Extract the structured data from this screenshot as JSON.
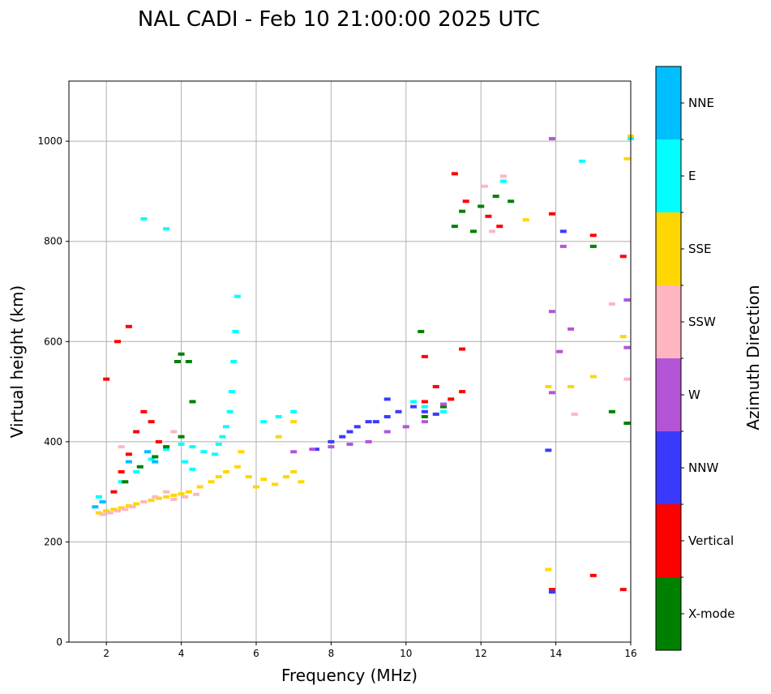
{
  "chart_data": {
    "type": "scatter",
    "title": "NAL CADI - Feb 10 21:00:00 2025 UTC",
    "xlabel": "Frequency (MHz)",
    "ylabel": "Virtual height (km)",
    "xlim": [
      1,
      16
    ],
    "ylim": [
      0,
      1120
    ],
    "xticks": [
      2,
      4,
      6,
      8,
      10,
      12,
      14,
      16
    ],
    "yticks": [
      0,
      200,
      400,
      600,
      800,
      1000
    ],
    "grid": true,
    "colorbar": {
      "label": "Azimuth Direction",
      "categories": [
        {
          "label": "X-mode",
          "color": "#008000"
        },
        {
          "label": "Vertical",
          "color": "#ff0000"
        },
        {
          "label": "NNW",
          "color": "#3a3aff"
        },
        {
          "label": "W",
          "color": "#b455d8"
        },
        {
          "label": "SSW",
          "color": "#ffb6c1"
        },
        {
          "label": "SSE",
          "color": "#ffd700"
        },
        {
          "label": "E",
          "color": "#00ffff"
        },
        {
          "label": "NNE",
          "color": "#00bfff"
        }
      ]
    },
    "series": [
      {
        "name": "SSE",
        "points": [
          [
            1.8,
            258
          ],
          [
            2.0,
            262
          ],
          [
            2.2,
            265
          ],
          [
            2.4,
            268
          ],
          [
            2.6,
            272
          ],
          [
            2.8,
            276
          ],
          [
            3.0,
            280
          ],
          [
            3.2,
            283
          ],
          [
            3.4,
            287
          ],
          [
            3.6,
            290
          ],
          [
            3.8,
            293
          ],
          [
            4.0,
            296
          ],
          [
            4.2,
            300
          ],
          [
            4.5,
            310
          ],
          [
            4.8,
            320
          ],
          [
            5.0,
            330
          ],
          [
            5.2,
            340
          ],
          [
            5.5,
            350
          ],
          [
            5.8,
            330
          ],
          [
            6.0,
            310
          ],
          [
            6.2,
            325
          ],
          [
            6.5,
            315
          ],
          [
            6.8,
            330
          ],
          [
            7.0,
            340
          ],
          [
            7.2,
            320
          ],
          [
            5.6,
            380
          ],
          [
            6.6,
            410
          ],
          [
            7.0,
            440
          ],
          [
            15.0,
            530
          ],
          [
            15.8,
            610
          ],
          [
            16.0,
            1010
          ],
          [
            15.9,
            965
          ],
          [
            13.2,
            843
          ],
          [
            13.8,
            510
          ],
          [
            14.4,
            510
          ],
          [
            13.8,
            145
          ]
        ]
      },
      {
        "name": "SSW",
        "points": [
          [
            1.9,
            255
          ],
          [
            2.1,
            258
          ],
          [
            2.3,
            262
          ],
          [
            2.5,
            265
          ],
          [
            2.7,
            270
          ],
          [
            3.0,
            280
          ],
          [
            3.3,
            290
          ],
          [
            3.6,
            300
          ],
          [
            3.8,
            285
          ],
          [
            4.1,
            290
          ],
          [
            4.4,
            295
          ],
          [
            2.4,
            390
          ],
          [
            3.8,
            420
          ],
          [
            12.1,
            910
          ],
          [
            12.3,
            820
          ],
          [
            12.6,
            930
          ],
          [
            15.5,
            675
          ],
          [
            15.9,
            525
          ],
          [
            14.5,
            455
          ]
        ]
      },
      {
        "name": "E",
        "points": [
          [
            1.8,
            290
          ],
          [
            2.4,
            320
          ],
          [
            2.8,
            340
          ],
          [
            3.2,
            365
          ],
          [
            3.6,
            385
          ],
          [
            4.0,
            395
          ],
          [
            4.3,
            390
          ],
          [
            4.6,
            380
          ],
          [
            4.9,
            375
          ],
          [
            5.0,
            395
          ],
          [
            5.1,
            410
          ],
          [
            5.2,
            430
          ],
          [
            5.3,
            460
          ],
          [
            5.35,
            500
          ],
          [
            5.4,
            560
          ],
          [
            5.45,
            620
          ],
          [
            5.5,
            690
          ],
          [
            4.1,
            360
          ],
          [
            4.3,
            345
          ],
          [
            6.2,
            440
          ],
          [
            6.6,
            450
          ],
          [
            7.0,
            460
          ],
          [
            10.2,
            480
          ],
          [
            10.5,
            470
          ],
          [
            11.0,
            460
          ],
          [
            3.0,
            845
          ],
          [
            3.6,
            825
          ],
          [
            14.7,
            960
          ],
          [
            12.6,
            920
          ],
          [
            16.0,
            1005
          ]
        ]
      },
      {
        "name": "Vertical",
        "points": [
          [
            2.2,
            300
          ],
          [
            2.4,
            340
          ],
          [
            2.6,
            375
          ],
          [
            2.8,
            420
          ],
          [
            3.0,
            460
          ],
          [
            3.2,
            440
          ],
          [
            3.4,
            400
          ],
          [
            2.3,
            600
          ],
          [
            2.6,
            630
          ],
          [
            2.0,
            525
          ],
          [
            10.5,
            480
          ],
          [
            10.8,
            510
          ],
          [
            11.2,
            485
          ],
          [
            11.5,
            500
          ],
          [
            10.5,
            570
          ],
          [
            11.5,
            585
          ],
          [
            11.3,
            935
          ],
          [
            11.6,
            880
          ],
          [
            12.2,
            850
          ],
          [
            12.5,
            830
          ],
          [
            13.9,
            855
          ],
          [
            15.0,
            812
          ],
          [
            15.8,
            770
          ],
          [
            15.0,
            133
          ],
          [
            15.8,
            105
          ],
          [
            13.9,
            105
          ]
        ]
      },
      {
        "name": "X-mode",
        "points": [
          [
            2.5,
            320
          ],
          [
            2.9,
            350
          ],
          [
            3.3,
            370
          ],
          [
            3.6,
            390
          ],
          [
            4.0,
            410
          ],
          [
            3.9,
            560
          ],
          [
            4.0,
            575
          ],
          [
            4.2,
            560
          ],
          [
            4.3,
            480
          ],
          [
            10.5,
            450
          ],
          [
            11.0,
            470
          ],
          [
            11.3,
            830
          ],
          [
            11.5,
            860
          ],
          [
            12.0,
            870
          ],
          [
            12.4,
            890
          ],
          [
            12.8,
            880
          ],
          [
            15.0,
            790
          ],
          [
            15.5,
            460
          ],
          [
            15.9,
            437
          ],
          [
            11.8,
            820
          ],
          [
            10.4,
            620
          ]
        ]
      },
      {
        "name": "NNW",
        "points": [
          [
            7.6,
            385
          ],
          [
            8.0,
            400
          ],
          [
            8.3,
            410
          ],
          [
            8.5,
            420
          ],
          [
            8.7,
            430
          ],
          [
            9.0,
            440
          ],
          [
            9.2,
            440
          ],
          [
            9.5,
            450
          ],
          [
            9.8,
            460
          ],
          [
            10.2,
            470
          ],
          [
            10.5,
            460
          ],
          [
            10.8,
            455
          ],
          [
            9.5,
            485
          ],
          [
            14.2,
            820
          ],
          [
            13.8,
            383
          ],
          [
            13.9,
            100
          ]
        ]
      },
      {
        "name": "W",
        "points": [
          [
            7.0,
            380
          ],
          [
            7.5,
            385
          ],
          [
            8.0,
            390
          ],
          [
            8.5,
            395
          ],
          [
            9.0,
            400
          ],
          [
            9.5,
            420
          ],
          [
            10.0,
            430
          ],
          [
            10.5,
            440
          ],
          [
            11.0,
            475
          ],
          [
            13.9,
            660
          ],
          [
            14.4,
            625
          ],
          [
            13.9,
            1005
          ],
          [
            14.2,
            790
          ],
          [
            15.9,
            588
          ],
          [
            15.9,
            683
          ],
          [
            14.1,
            580
          ],
          [
            13.9,
            498
          ]
        ]
      },
      {
        "name": "NNE",
        "points": [
          [
            1.7,
            270
          ],
          [
            1.9,
            280
          ],
          [
            2.6,
            360
          ],
          [
            3.1,
            380
          ],
          [
            3.3,
            360
          ]
        ]
      }
    ]
  }
}
